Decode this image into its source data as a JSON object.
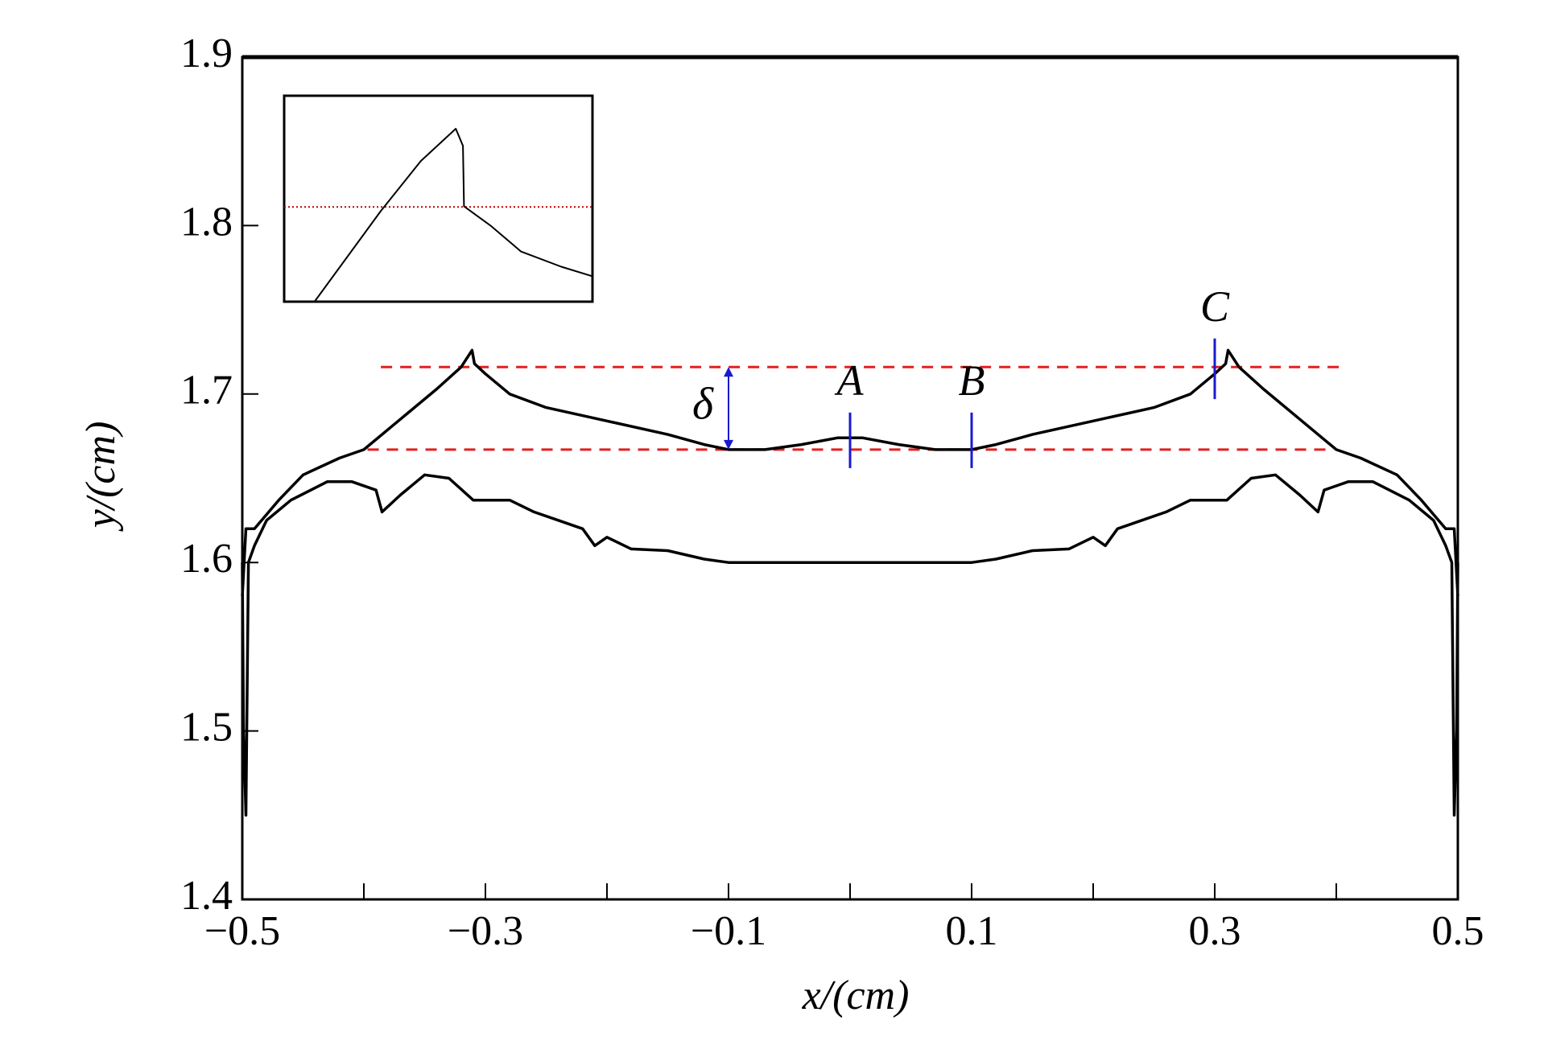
{
  "chart_data": [
    {
      "type": "line",
      "xlabel": "x/(cm)",
      "ylabel": "y/(cm)",
      "xlim": [
        -0.5,
        0.5
      ],
      "ylim": [
        1.4,
        1.9
      ],
      "xticks": [
        {
          "value": -0.5,
          "label": "−0.5"
        },
        {
          "value": -0.3,
          "label": "−0.3"
        },
        {
          "value": -0.1,
          "label": "−0.1"
        },
        0.1,
        0.3,
        0.5
      ],
      "xminor": [
        -0.4,
        -0.2,
        0,
        0.2,
        0.4
      ],
      "yticks": [
        1.4,
        1.5,
        1.6,
        1.7,
        1.8,
        1.9
      ],
      "series": [
        {
          "color": "#000000",
          "x": [
            -0.5,
            -0.497,
            -0.49,
            -0.47,
            -0.45,
            -0.42,
            -0.4,
            -0.37,
            -0.34,
            -0.32,
            -0.311,
            -0.309,
            -0.3,
            -0.28,
            -0.25,
            -0.2,
            -0.15,
            -0.12,
            -0.1,
            -0.07,
            -0.04,
            -0.01,
            0.01,
            0.04,
            0.07,
            0.1,
            0.12,
            0.15,
            0.2,
            0.25,
            0.28,
            0.3,
            0.309,
            0.311,
            0.32,
            0.34,
            0.37,
            0.4,
            0.42,
            0.45,
            0.47,
            0.49,
            0.497,
            0.5
          ],
          "values": [
            1.58,
            1.62,
            1.62,
            1.637,
            1.652,
            1.662,
            1.667,
            1.685,
            1.703,
            1.716,
            1.726,
            1.718,
            1.712,
            1.7,
            1.692,
            1.684,
            1.676,
            1.67,
            1.667,
            1.667,
            1.67,
            1.674,
            1.674,
            1.67,
            1.667,
            1.667,
            1.67,
            1.676,
            1.684,
            1.692,
            1.7,
            1.712,
            1.718,
            1.726,
            1.716,
            1.703,
            1.685,
            1.667,
            1.662,
            1.652,
            1.637,
            1.62,
            1.62,
            1.58
          ]
        },
        {
          "color": "#000000",
          "x": [
            -0.5,
            -0.499,
            -0.497,
            -0.495,
            -0.49,
            -0.48,
            -0.46,
            -0.43,
            -0.41,
            -0.39,
            -0.385,
            -0.37,
            -0.35,
            -0.33,
            -0.31,
            -0.28,
            -0.26,
            -0.24,
            -0.22,
            -0.21,
            -0.2,
            -0.18,
            -0.15,
            -0.12,
            -0.1,
            -0.05,
            0,
            0.05,
            0.1,
            0.12,
            0.15,
            0.18,
            0.2,
            0.21,
            0.22,
            0.24,
            0.26,
            0.28,
            0.31,
            0.33,
            0.35,
            0.37,
            0.385,
            0.39,
            0.41,
            0.43,
            0.46,
            0.48,
            0.49,
            0.495,
            0.497,
            0.499,
            0.5
          ],
          "values": [
            1.6,
            1.5,
            1.45,
            1.6,
            1.61,
            1.625,
            1.637,
            1.648,
            1.648,
            1.643,
            1.63,
            1.64,
            1.652,
            1.65,
            1.637,
            1.637,
            1.63,
            1.625,
            1.62,
            1.61,
            1.615,
            1.608,
            1.607,
            1.602,
            1.6,
            1.6,
            1.6,
            1.6,
            1.6,
            1.602,
            1.607,
            1.608,
            1.615,
            1.61,
            1.62,
            1.625,
            1.63,
            1.637,
            1.637,
            1.65,
            1.652,
            1.64,
            1.63,
            1.643,
            1.648,
            1.648,
            1.637,
            1.625,
            1.61,
            1.6,
            1.45,
            1.5,
            1.6
          ]
        }
      ],
      "ref_lines": [
        {
          "y": 1.716,
          "x": [
            -0.386,
            0.404
          ],
          "color": "#e02020"
        },
        {
          "y": 1.667,
          "x": [
            -0.397,
            0.397
          ],
          "color": "#e02020"
        }
      ],
      "delta": {
        "label": "δ",
        "x": -0.1,
        "y": [
          1.667,
          1.716
        ],
        "color": "#1a1ad0"
      },
      "markers": [
        {
          "label": "A",
          "x": 0,
          "y": [
            1.656,
            1.689
          ],
          "color": "#1a1ad0"
        },
        {
          "label": "B",
          "x": 0.1,
          "y": [
            1.656,
            1.689
          ],
          "color": "#1a1ad0"
        },
        {
          "label": "C",
          "x": 0.3,
          "y": [
            1.697,
            1.733
          ],
          "color": "#1a1ad0"
        }
      ]
    },
    {
      "type": "line",
      "xlim": [
        -0.34,
        -0.28
      ],
      "ylim": [
        1.7,
        1.73
      ],
      "series": [
        {
          "color": "#000000",
          "x": [
            -0.3341,
            -0.3212,
            -0.3134,
            -0.3066,
            -0.3052,
            -0.305,
            -0.2997,
            -0.2939,
            -0.2861,
            -0.28
          ],
          "values": [
            1.7,
            1.7132,
            1.7205,
            1.7252,
            1.7227,
            1.7139,
            1.711,
            1.7073,
            1.7051,
            1.7037
          ]
        }
      ],
      "ref_line": {
        "y": 1.7138,
        "color": "#c00000"
      }
    }
  ]
}
